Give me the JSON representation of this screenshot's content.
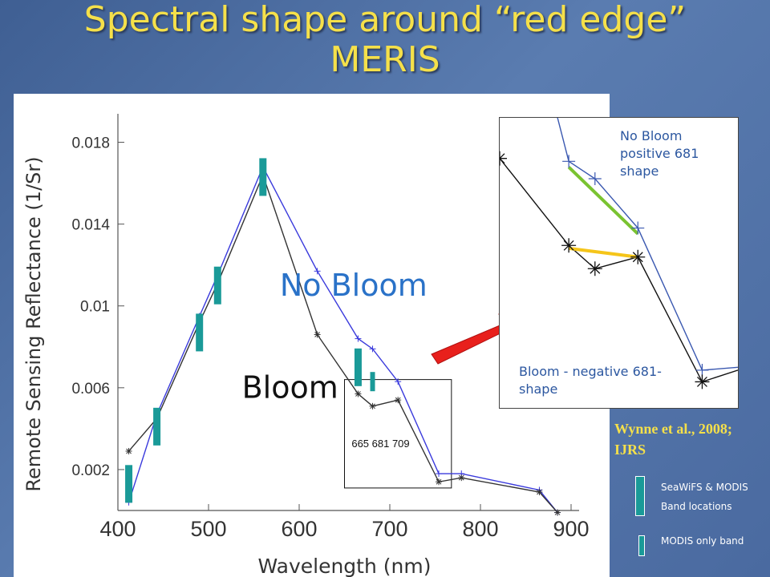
{
  "slide": {
    "title_line1": "Spectral shape around “red edge”",
    "title_line2": "MERIS",
    "citation": "Wynne et al., 2008; IJRS",
    "legend": {
      "seawifs_label_1": "SeaWiFS & MODIS",
      "seawifs_label_2": "Band locations",
      "modis_label": "MODIS only band",
      "bar_color": "#1a9a98"
    }
  },
  "chart_data": {
    "type": "line",
    "title": "",
    "xlabel": "Wavelength (nm)",
    "ylabel": "Remote Sensing Reflectance (1/Sr)",
    "xlim": [
      400,
      900
    ],
    "ylim": [
      0,
      0.019
    ],
    "xticks": [
      400,
      500,
      600,
      700,
      800,
      900
    ],
    "yticks": [
      0.002,
      0.006,
      0.01,
      0.014,
      0.018
    ],
    "ytick_labels": [
      "0.002",
      "0.006",
      "0.01",
      "0.014",
      "0.018"
    ],
    "series": [
      {
        "name": "No Bloom",
        "color": "#3a3adc",
        "marker": "plus",
        "x": [
          412,
          443,
          490,
          510,
          560,
          620,
          665,
          681,
          709,
          754,
          779,
          865,
          885
        ],
        "y": [
          0.0004,
          0.0047,
          0.0095,
          0.0115,
          0.0168,
          0.0117,
          0.0084,
          0.0079,
          0.0063,
          0.0018,
          0.0018,
          0.001,
          -0.0001
        ]
      },
      {
        "name": "Bloom",
        "color": "#333333",
        "marker": "star",
        "x": [
          412,
          443,
          490,
          510,
          560,
          620,
          665,
          681,
          709,
          754,
          779,
          865,
          885
        ],
        "y": [
          0.0029,
          0.0045,
          0.0092,
          0.0111,
          0.0164,
          0.0086,
          0.0057,
          0.0051,
          0.0054,
          0.0014,
          0.0016,
          0.0009,
          -0.0001
        ]
      }
    ],
    "series_labels": [
      {
        "text": "No Bloom",
        "x": 660,
        "y": 0.0105,
        "color": "#2a72c8"
      },
      {
        "text": "Bloom",
        "x": 590,
        "y": 0.0055,
        "color": "#111111"
      }
    ],
    "band_markers": [
      {
        "x": 412,
        "y_center": 0.0013,
        "kind": "seawifs_modis"
      },
      {
        "x": 443,
        "y_center": 0.0041,
        "kind": "seawifs_modis"
      },
      {
        "x": 490,
        "y_center": 0.0087,
        "kind": "seawifs_modis"
      },
      {
        "x": 510,
        "y_center": 0.011,
        "kind": "seawifs_modis"
      },
      {
        "x": 560,
        "y_center": 0.0163,
        "kind": "seawifs_modis"
      },
      {
        "x": 665,
        "y_center": 0.007,
        "kind": "seawifs_modis"
      },
      {
        "x": 681,
        "y_center": 0.0063,
        "kind": "modis_only"
      }
    ],
    "band_labels": [
      "665",
      "681",
      "709"
    ],
    "zoom_box": {
      "x0": 650,
      "x1": 768,
      "y0": 0.0011,
      "y1": 0.0064
    }
  },
  "inset": {
    "no_bloom_label": "No Bloom positive 681 shape",
    "bloom_label": "Bloom - negative 681-shape",
    "no_bloom_points": [
      [
        0.18,
        -0.2
      ],
      [
        0.29,
        0.15
      ],
      [
        0.4,
        0.21
      ],
      [
        0.58,
        0.38
      ],
      [
        0.85,
        0.87
      ],
      [
        1.0,
        0.86
      ]
    ],
    "bloom_points": [
      [
        0.0,
        0.14
      ],
      [
        0.29,
        0.44
      ],
      [
        0.4,
        0.52
      ],
      [
        0.58,
        0.48
      ],
      [
        0.85,
        0.91
      ],
      [
        1.0,
        0.87
      ]
    ],
    "no_bloom_plus_markers": [
      [
        0.29,
        0.15
      ],
      [
        0.4,
        0.21
      ],
      [
        0.58,
        0.38
      ],
      [
        0.85,
        0.87
      ]
    ],
    "bloom_star_markers": [
      [
        0.0,
        0.14
      ],
      [
        0.29,
        0.44
      ],
      [
        0.4,
        0.52
      ],
      [
        0.58,
        0.48
      ],
      [
        0.85,
        0.91
      ]
    ],
    "green_segment": [
      [
        0.29,
        0.17
      ],
      [
        0.58,
        0.4
      ]
    ],
    "yellow_segment": [
      [
        0.29,
        0.45
      ],
      [
        0.58,
        0.48
      ]
    ],
    "green_color": "#7ac331",
    "yellow_color": "#f5c51a"
  }
}
